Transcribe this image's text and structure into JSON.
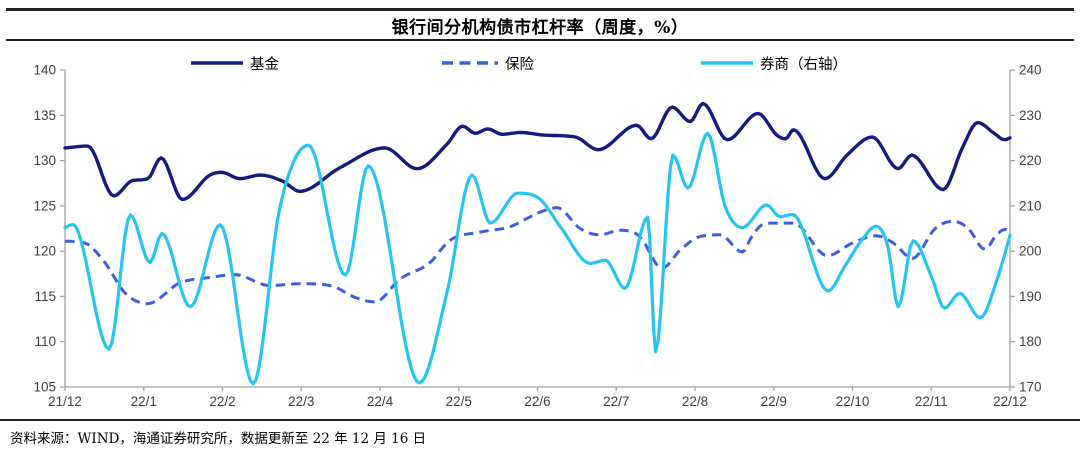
{
  "title": "银行间分机构债市杠杆率（周度，%）",
  "source_note": "资料来源：WIND，海通证券研究所，数据更新至 22 年 12 月 16 日",
  "chart_data": {
    "type": "line",
    "title": "银行间分机构债市杠杆率（周度，%）",
    "frequency": "weekly",
    "x_axis": {
      "tick_labels": [
        "21/12",
        "22/1",
        "22/2",
        "22/3",
        "22/4",
        "22/5",
        "22/6",
        "22/7",
        "22/8",
        "22/9",
        "22/10",
        "22/11",
        "22/12"
      ],
      "range": [
        0,
        12
      ],
      "unit": "x in months since 21/12"
    },
    "left_axis": {
      "range": [
        105,
        140
      ],
      "ticks": [
        140,
        135,
        130,
        125,
        120,
        115,
        110,
        105
      ]
    },
    "right_axis": {
      "range": [
        170,
        240
      ],
      "ticks": [
        240,
        230,
        220,
        210,
        200,
        190,
        180,
        170
      ]
    },
    "grid": false,
    "legend_position": "top",
    "axis_color": "#a3a3a3",
    "tick_label_color": "#404040",
    "series": [
      {
        "name": "基金",
        "axis": "left",
        "color": "#141b7f",
        "line_style": "solid",
        "points": [
          [
            0.0,
            131.4
          ],
          [
            0.29,
            131.6
          ],
          [
            0.62,
            126.1
          ],
          [
            0.86,
            127.8
          ],
          [
            1.05,
            128.0
          ],
          [
            1.22,
            130.3
          ],
          [
            1.49,
            125.7
          ],
          [
            1.84,
            128.4
          ],
          [
            1.99,
            128.7
          ],
          [
            2.22,
            128.0
          ],
          [
            2.48,
            128.4
          ],
          [
            2.77,
            127.7
          ],
          [
            2.98,
            126.6
          ],
          [
            3.49,
            129.2
          ],
          [
            4.06,
            131.4
          ],
          [
            4.47,
            129.1
          ],
          [
            4.85,
            131.8
          ],
          [
            5.05,
            133.8
          ],
          [
            5.21,
            133.0
          ],
          [
            5.37,
            133.5
          ],
          [
            5.55,
            132.9
          ],
          [
            5.78,
            133.1
          ],
          [
            6.1,
            132.8
          ],
          [
            6.48,
            132.6
          ],
          [
            6.77,
            131.2
          ],
          [
            7.26,
            133.9
          ],
          [
            7.44,
            132.4
          ],
          [
            7.71,
            135.9
          ],
          [
            7.94,
            134.3
          ],
          [
            8.1,
            136.3
          ],
          [
            8.41,
            132.3
          ],
          [
            8.8,
            135.2
          ],
          [
            9.04,
            132.8
          ],
          [
            9.15,
            132.4
          ],
          [
            9.25,
            133.4
          ],
          [
            9.65,
            128.0
          ],
          [
            9.93,
            130.6
          ],
          [
            10.25,
            132.6
          ],
          [
            10.58,
            129.1
          ],
          [
            10.75,
            130.6
          ],
          [
            11.15,
            126.8
          ],
          [
            11.4,
            131.5
          ],
          [
            11.59,
            134.2
          ],
          [
            11.8,
            133.0
          ],
          [
            11.93,
            132.3
          ],
          [
            12.0,
            132.5
          ]
        ]
      },
      {
        "name": "保险",
        "axis": "left",
        "color": "#3e5ede",
        "line_style": "dashed",
        "points": [
          [
            0.0,
            121.1
          ],
          [
            0.25,
            120.9
          ],
          [
            0.51,
            118.7
          ],
          [
            0.76,
            115.4
          ],
          [
            1.05,
            114.2
          ],
          [
            1.46,
            116.5
          ],
          [
            1.84,
            117.1
          ],
          [
            2.16,
            117.4
          ],
          [
            2.6,
            116.2
          ],
          [
            2.98,
            116.4
          ],
          [
            3.37,
            116.2
          ],
          [
            3.68,
            114.9
          ],
          [
            3.94,
            114.4
          ],
          [
            4.25,
            116.9
          ],
          [
            4.63,
            118.7
          ],
          [
            4.89,
            121.2
          ],
          [
            5.27,
            122.1
          ],
          [
            5.65,
            122.7
          ],
          [
            6.03,
            124.3
          ],
          [
            6.25,
            124.8
          ],
          [
            6.54,
            122.5
          ],
          [
            6.79,
            121.8
          ],
          [
            7.05,
            122.3
          ],
          [
            7.3,
            121.6
          ],
          [
            7.58,
            118.1
          ],
          [
            7.81,
            120.1
          ],
          [
            8.06,
            121.6
          ],
          [
            8.32,
            121.8
          ],
          [
            8.6,
            119.9
          ],
          [
            8.72,
            121.6
          ],
          [
            8.85,
            122.9
          ],
          [
            9.0,
            123.1
          ],
          [
            9.25,
            123.1
          ],
          [
            9.68,
            119.5
          ],
          [
            10.0,
            120.9
          ],
          [
            10.3,
            121.7
          ],
          [
            10.52,
            120.9
          ],
          [
            10.76,
            119.2
          ],
          [
            11.05,
            122.5
          ],
          [
            11.28,
            123.3
          ],
          [
            11.47,
            122.5
          ],
          [
            11.68,
            120.2
          ],
          [
            11.83,
            121.8
          ],
          [
            11.94,
            122.4
          ],
          [
            12.0,
            122.2
          ]
        ]
      },
      {
        "name": "券商（右轴）",
        "axis": "right",
        "color": "#27c4f0",
        "line_style": "solid",
        "points": [
          [
            0.0,
            205.2
          ],
          [
            0.1,
            205.9
          ],
          [
            0.56,
            178.4
          ],
          [
            0.83,
            208.0
          ],
          [
            1.08,
            197.5
          ],
          [
            1.23,
            203.9
          ],
          [
            1.59,
            187.7
          ],
          [
            1.97,
            205.8
          ],
          [
            2.39,
            170.7
          ],
          [
            2.73,
            209.8
          ],
          [
            3.09,
            223.4
          ],
          [
            3.56,
            194.7
          ],
          [
            3.85,
            218.8
          ],
          [
            4.5,
            170.9
          ],
          [
            4.85,
            190.8
          ],
          [
            5.17,
            216.8
          ],
          [
            5.4,
            206.2
          ],
          [
            5.75,
            212.8
          ],
          [
            6.03,
            211.5
          ],
          [
            6.29,
            205.4
          ],
          [
            6.67,
            197.3
          ],
          [
            6.86,
            198.0
          ],
          [
            7.11,
            191.8
          ],
          [
            7.4,
            207.5
          ],
          [
            7.5,
            177.8
          ],
          [
            7.72,
            221.2
          ],
          [
            7.91,
            213.9
          ],
          [
            8.16,
            226.0
          ],
          [
            8.38,
            210.0
          ],
          [
            8.6,
            205.2
          ],
          [
            8.91,
            210.2
          ],
          [
            9.08,
            207.6
          ],
          [
            9.24,
            208.1
          ],
          [
            9.69,
            191.2
          ],
          [
            9.9,
            196.6
          ],
          [
            10.12,
            202.5
          ],
          [
            10.3,
            205.5
          ],
          [
            10.45,
            201.0
          ],
          [
            10.58,
            187.7
          ],
          [
            10.77,
            202.3
          ],
          [
            11.0,
            194.5
          ],
          [
            11.17,
            187.4
          ],
          [
            11.36,
            190.7
          ],
          [
            11.62,
            185.3
          ],
          [
            11.85,
            194.5
          ],
          [
            12.0,
            203.5
          ]
        ]
      }
    ]
  }
}
